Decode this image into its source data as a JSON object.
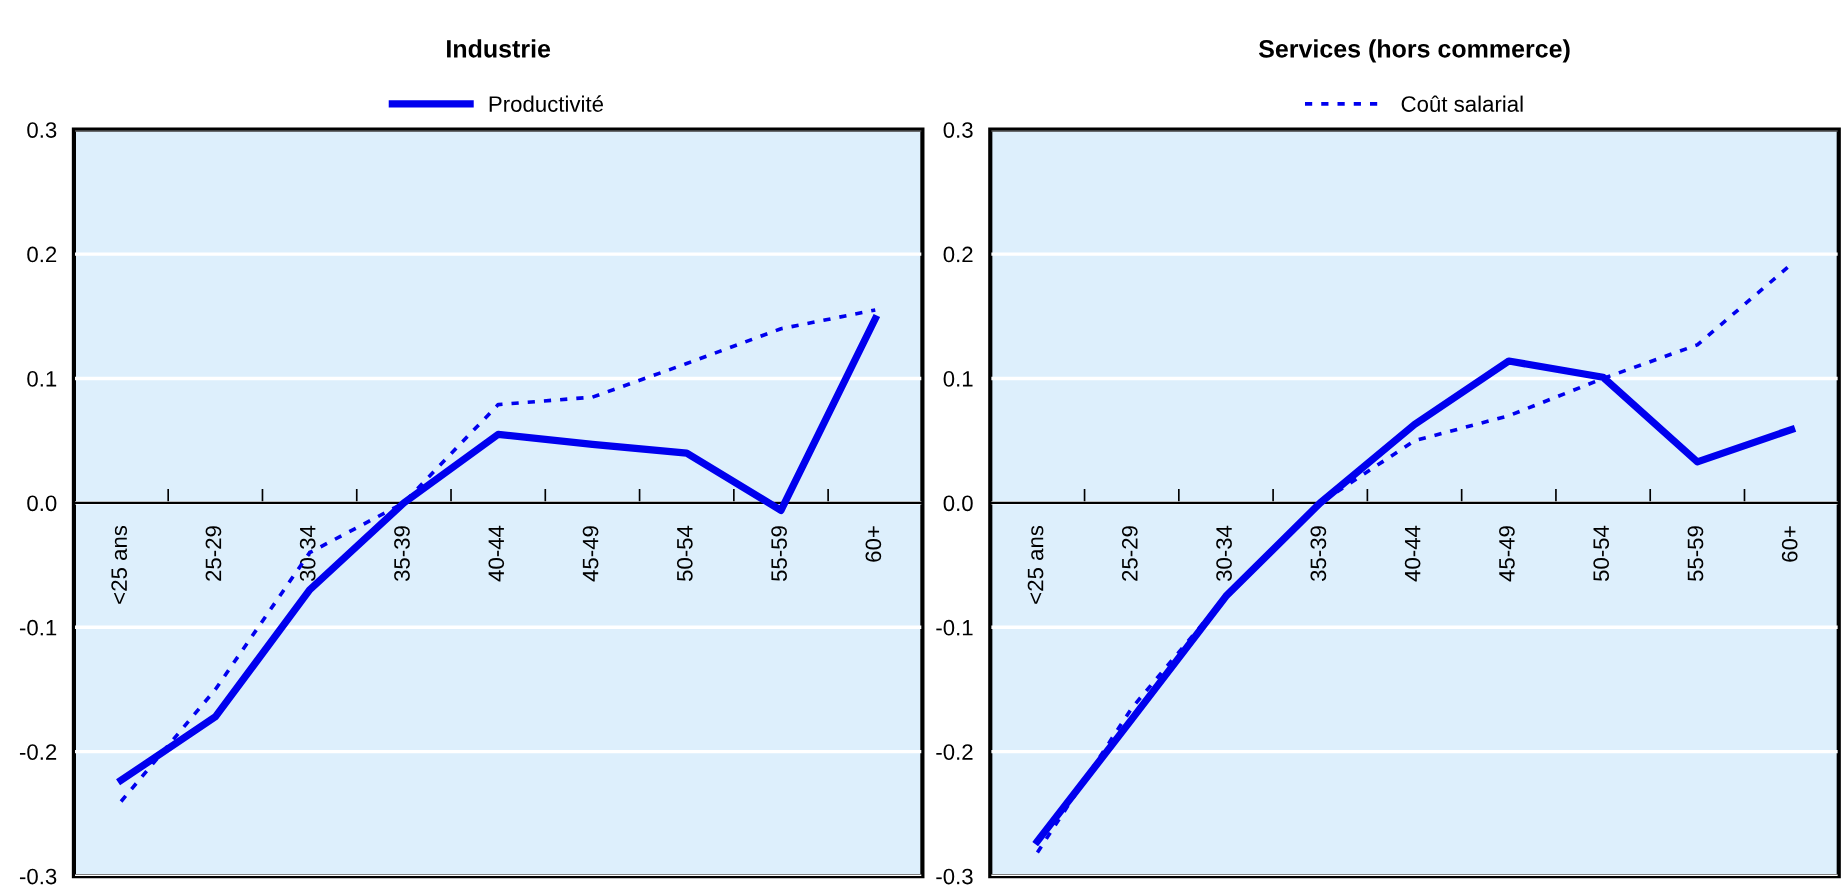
{
  "chart_data": [
    {
      "type": "line",
      "title": "Industrie",
      "categories": [
        "<25 ans",
        "25-29",
        "30-34",
        "35-39",
        "40-44",
        "45-49",
        "50-54",
        "55-59",
        "60+"
      ],
      "series": [
        {
          "name": "Productivité",
          "color": "#0000ee",
          "line_style": "solid",
          "values": [
            -0.223,
            -0.172,
            -0.07,
            0.0,
            0.055,
            0.047,
            0.04,
            -0.006,
            0.148
          ]
        },
        {
          "color": "#0000ee",
          "line_style": "dotted",
          "values": [
            -0.24,
            -0.15,
            -0.04,
            0.0,
            0.079,
            0.085,
            0.112,
            0.14,
            0.155
          ]
        }
      ],
      "ylim": [
        -0.3,
        0.3
      ],
      "yticks": [
        -0.3,
        -0.2,
        -0.1,
        {
          "value": 0.0,
          "label": "0.0"
        },
        0.1,
        0.2,
        0.3
      ],
      "grid": "y",
      "legend": "top"
    },
    {
      "type": "line",
      "title": "Services (hors commerce)",
      "categories": [
        "<25 ans",
        "25-29",
        "30-34",
        "35-39",
        "40-44",
        "45-49",
        "50-54",
        "55-59",
        "60+"
      ],
      "series": [
        {
          "color": "#0000ee",
          "line_style": "solid",
          "values": [
            -0.272,
            -0.174,
            -0.075,
            0.0,
            0.063,
            0.114,
            0.101,
            0.033,
            0.059
          ]
        },
        {
          "name": "Coût salarial",
          "color": "#0000ee",
          "line_style": "dotted",
          "values": [
            -0.281,
            -0.165,
            -0.075,
            0.0,
            0.05,
            0.07,
            0.1,
            0.127,
            0.192
          ]
        }
      ],
      "ylim": [
        -0.3,
        0.3
      ],
      "yticks": [
        -0.3,
        -0.2,
        -0.1,
        {
          "value": 0.0,
          "label": "0.0"
        },
        0.1,
        0.2,
        0.3
      ],
      "grid": "y",
      "legend": "top"
    }
  ]
}
